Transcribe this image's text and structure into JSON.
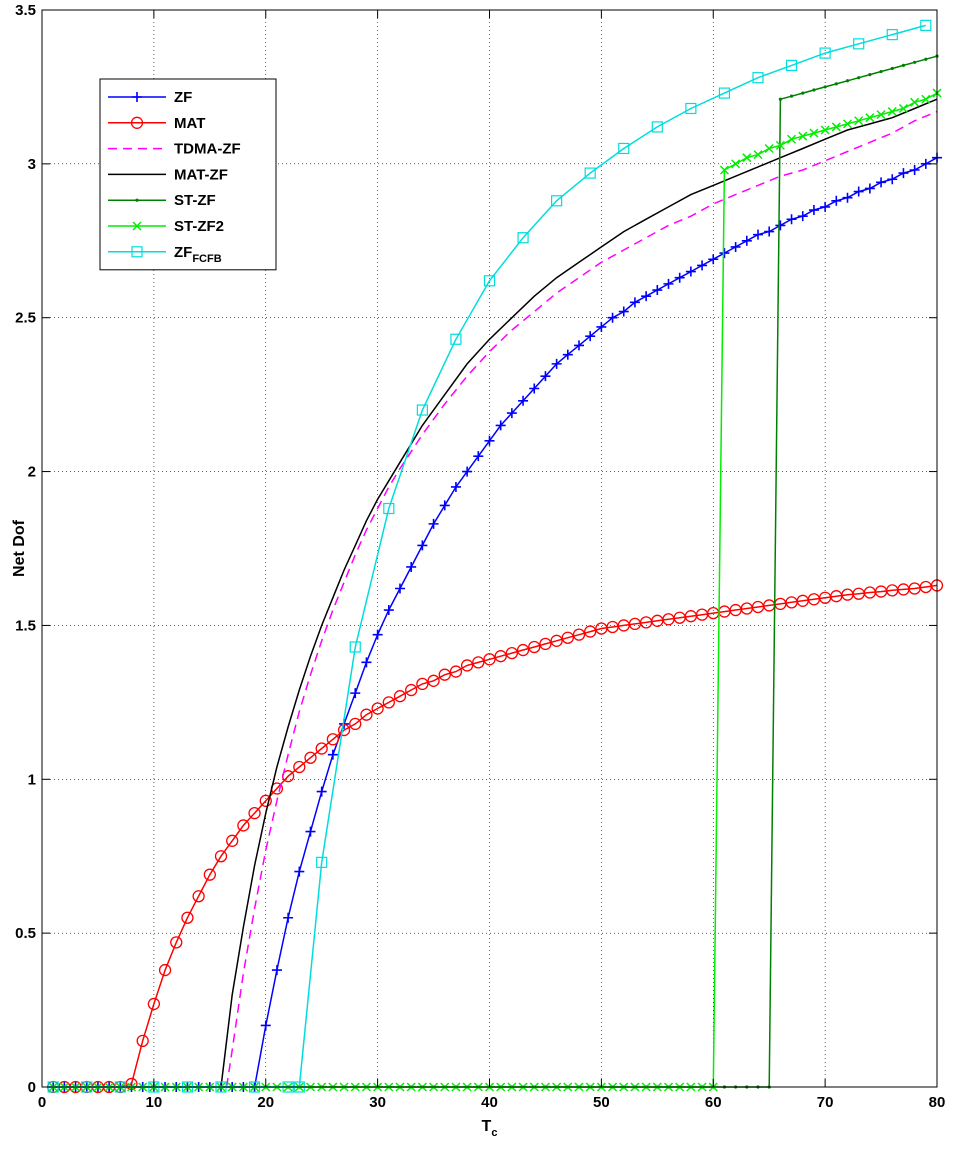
{
  "chart_data": {
    "type": "line",
    "xlabel": "T",
    "xlabel_sub": "c",
    "ylabel": "Net Dof",
    "xlim": [
      0,
      80
    ],
    "ylim": [
      0,
      3.5
    ],
    "xticks": [
      0,
      10,
      20,
      30,
      40,
      50,
      60,
      70,
      80
    ],
    "yticks": [
      0,
      0.5,
      1,
      1.5,
      2,
      2.5,
      3,
      3.5
    ],
    "xtick_labels": [
      "0",
      "10",
      "20",
      "30",
      "40",
      "50",
      "60",
      "70",
      "80"
    ],
    "ytick_labels": [
      "0",
      "0.5",
      "1",
      "1.5",
      "2",
      "2.5",
      "3",
      "3.5"
    ],
    "grid": true,
    "legend_position": "top-left",
    "series": [
      {
        "name": "ZF",
        "color": "#0000ff",
        "marker": "plus",
        "dash": "solid",
        "x": [
          1,
          2,
          3,
          4,
          5,
          6,
          7,
          8,
          9,
          10,
          11,
          12,
          13,
          14,
          15,
          16,
          17,
          18,
          19,
          20,
          21,
          22,
          23,
          24,
          25,
          26,
          27,
          28,
          29,
          30,
          31,
          32,
          33,
          34,
          35,
          36,
          37,
          38,
          39,
          40,
          41,
          42,
          43,
          44,
          45,
          46,
          47,
          48,
          49,
          50,
          51,
          52,
          53,
          54,
          55,
          56,
          57,
          58,
          59,
          60,
          61,
          62,
          63,
          64,
          65,
          66,
          67,
          68,
          69,
          70,
          71,
          72,
          73,
          74,
          75,
          76,
          77,
          78,
          79,
          80
        ],
        "y": [
          0,
          0,
          0,
          0,
          0,
          0,
          0,
          0,
          0,
          0,
          0,
          0,
          0,
          0,
          0,
          0,
          0,
          0,
          0,
          0.2,
          0.38,
          0.55,
          0.7,
          0.83,
          0.96,
          1.08,
          1.18,
          1.28,
          1.38,
          1.47,
          1.55,
          1.62,
          1.69,
          1.76,
          1.83,
          1.89,
          1.95,
          2.0,
          2.05,
          2.1,
          2.15,
          2.19,
          2.23,
          2.27,
          2.31,
          2.35,
          2.38,
          2.41,
          2.44,
          2.47,
          2.5,
          2.52,
          2.55,
          2.57,
          2.59,
          2.61,
          2.63,
          2.65,
          2.67,
          2.69,
          2.71,
          2.73,
          2.75,
          2.77,
          2.78,
          2.8,
          2.82,
          2.83,
          2.85,
          2.86,
          2.88,
          2.89,
          2.91,
          2.92,
          2.94,
          2.95,
          2.97,
          2.98,
          3.0,
          3.02
        ]
      },
      {
        "name": "MAT",
        "color": "#ff0000",
        "marker": "circle",
        "dash": "solid",
        "x": [
          1,
          2,
          3,
          4,
          5,
          6,
          7,
          8,
          9,
          10,
          11,
          12,
          13,
          14,
          15,
          16,
          17,
          18,
          19,
          20,
          21,
          22,
          23,
          24,
          25,
          26,
          27,
          28,
          29,
          30,
          31,
          32,
          33,
          34,
          35,
          36,
          37,
          38,
          39,
          40,
          41,
          42,
          43,
          44,
          45,
          46,
          47,
          48,
          49,
          50,
          51,
          52,
          53,
          54,
          55,
          56,
          57,
          58,
          59,
          60,
          61,
          62,
          63,
          64,
          65,
          66,
          67,
          68,
          69,
          70,
          71,
          72,
          73,
          74,
          75,
          76,
          77,
          78,
          79,
          80
        ],
        "y": [
          0,
          0,
          0,
          0,
          0,
          0,
          0,
          0.01,
          0.15,
          0.27,
          0.38,
          0.47,
          0.55,
          0.62,
          0.69,
          0.75,
          0.8,
          0.85,
          0.89,
          0.93,
          0.97,
          1.01,
          1.04,
          1.07,
          1.1,
          1.13,
          1.16,
          1.18,
          1.21,
          1.23,
          1.25,
          1.27,
          1.29,
          1.31,
          1.32,
          1.34,
          1.35,
          1.37,
          1.38,
          1.39,
          1.4,
          1.41,
          1.42,
          1.43,
          1.44,
          1.45,
          1.46,
          1.47,
          1.48,
          1.49,
          1.495,
          1.5,
          1.505,
          1.51,
          1.515,
          1.52,
          1.525,
          1.53,
          1.535,
          1.54,
          1.545,
          1.55,
          1.555,
          1.56,
          1.565,
          1.57,
          1.575,
          1.58,
          1.585,
          1.59,
          1.595,
          1.6,
          1.603,
          1.607,
          1.61,
          1.614,
          1.617,
          1.62,
          1.625,
          1.63
        ]
      },
      {
        "name": "TDMA-ZF",
        "color": "#ff00ff",
        "marker": "none",
        "dash": "dashed",
        "x": [
          16.5,
          17,
          18,
          19,
          20,
          21,
          22,
          23,
          24,
          25,
          26,
          27,
          28,
          29,
          30,
          31,
          32,
          34,
          36,
          38,
          40,
          42,
          44,
          46,
          48,
          50,
          52,
          54,
          56,
          58,
          60,
          62,
          64,
          66,
          68,
          70,
          72,
          74,
          76,
          78,
          80
        ],
        "y": [
          0,
          0.12,
          0.37,
          0.58,
          0.77,
          0.93,
          1.08,
          1.22,
          1.34,
          1.45,
          1.55,
          1.64,
          1.73,
          1.81,
          1.88,
          1.95,
          2.01,
          2.12,
          2.22,
          2.31,
          2.39,
          2.46,
          2.52,
          2.58,
          2.63,
          2.68,
          2.72,
          2.76,
          2.8,
          2.83,
          2.87,
          2.9,
          2.93,
          2.96,
          2.98,
          3.01,
          3.04,
          3.07,
          3.1,
          3.14,
          3.17
        ]
      },
      {
        "name": "MAT-ZF",
        "color": "#000000",
        "marker": "none",
        "dash": "solid",
        "x": [
          16,
          17,
          18,
          19,
          20,
          21,
          22,
          23,
          24,
          25,
          26,
          27,
          28,
          29,
          30,
          31,
          32,
          34,
          36,
          38,
          40,
          42,
          44,
          46,
          48,
          50,
          52,
          54,
          56,
          58,
          60,
          62,
          64,
          66,
          68,
          70,
          72,
          74,
          76,
          78,
          80
        ],
        "y": [
          0,
          0.3,
          0.52,
          0.72,
          0.89,
          1.04,
          1.17,
          1.29,
          1.4,
          1.5,
          1.59,
          1.68,
          1.76,
          1.84,
          1.91,
          1.97,
          2.03,
          2.15,
          2.25,
          2.35,
          2.43,
          2.5,
          2.57,
          2.63,
          2.68,
          2.73,
          2.78,
          2.82,
          2.86,
          2.9,
          2.93,
          2.96,
          2.99,
          3.02,
          3.05,
          3.08,
          3.11,
          3.13,
          3.15,
          3.18,
          3.21
        ]
      },
      {
        "name": "ST-ZF",
        "color": "#008000",
        "marker": "dot",
        "dash": "solid",
        "x": [
          1,
          2,
          3,
          4,
          5,
          6,
          7,
          8,
          9,
          10,
          11,
          12,
          13,
          14,
          15,
          16,
          17,
          18,
          19,
          20,
          21,
          22,
          23,
          24,
          25,
          26,
          27,
          28,
          29,
          30,
          31,
          32,
          33,
          34,
          35,
          36,
          37,
          38,
          39,
          40,
          41,
          42,
          43,
          44,
          45,
          46,
          47,
          48,
          49,
          50,
          51,
          52,
          53,
          54,
          55,
          56,
          57,
          58,
          59,
          60,
          61,
          62,
          63,
          64,
          65,
          66,
          67,
          68,
          69,
          70,
          71,
          72,
          73,
          74,
          75,
          76,
          77,
          78,
          79,
          80
        ],
        "y": [
          0,
          0,
          0,
          0,
          0,
          0,
          0,
          0,
          0,
          0,
          0,
          0,
          0,
          0,
          0,
          0,
          0,
          0,
          0,
          0,
          0,
          0,
          0,
          0,
          0,
          0,
          0,
          0,
          0,
          0,
          0,
          0,
          0,
          0,
          0,
          0,
          0,
          0,
          0,
          0,
          0,
          0,
          0,
          0,
          0,
          0,
          0,
          0,
          0,
          0,
          0,
          0,
          0,
          0,
          0,
          0,
          0,
          0,
          0,
          0,
          0,
          0,
          0,
          0,
          0,
          3.21,
          3.22,
          3.23,
          3.24,
          3.25,
          3.26,
          3.27,
          3.28,
          3.29,
          3.3,
          3.31,
          3.32,
          3.33,
          3.34,
          3.35
        ]
      },
      {
        "name": "ST-ZF2",
        "color": "#00ee00",
        "marker": "cross",
        "dash": "solid",
        "x": [
          1,
          2,
          3,
          4,
          5,
          6,
          7,
          8,
          9,
          10,
          11,
          12,
          13,
          14,
          15,
          16,
          17,
          18,
          19,
          20,
          21,
          22,
          23,
          24,
          25,
          26,
          27,
          28,
          29,
          30,
          31,
          32,
          33,
          34,
          35,
          36,
          37,
          38,
          39,
          40,
          41,
          42,
          43,
          44,
          45,
          46,
          47,
          48,
          49,
          50,
          51,
          52,
          53,
          54,
          55,
          56,
          57,
          58,
          59,
          60,
          61,
          62,
          63,
          64,
          65,
          66,
          67,
          68,
          69,
          70,
          71,
          72,
          73,
          74,
          75,
          76,
          77,
          78,
          79,
          80
        ],
        "y": [
          0,
          0,
          0,
          0,
          0,
          0,
          0,
          0,
          0,
          0,
          0,
          0,
          0,
          0,
          0,
          0,
          0,
          0,
          0,
          0,
          0,
          0,
          0,
          0,
          0,
          0,
          0,
          0,
          0,
          0,
          0,
          0,
          0,
          0,
          0,
          0,
          0,
          0,
          0,
          0,
          0,
          0,
          0,
          0,
          0,
          0,
          0,
          0,
          0,
          0,
          0,
          0,
          0,
          0,
          0,
          0,
          0,
          0,
          0,
          0,
          2.98,
          3.0,
          3.02,
          3.03,
          3.05,
          3.06,
          3.08,
          3.09,
          3.1,
          3.11,
          3.12,
          3.13,
          3.14,
          3.15,
          3.16,
          3.17,
          3.18,
          3.2,
          3.21,
          3.23
        ]
      },
      {
        "name": "ZF",
        "name_sub": "FCFB",
        "color": "#00dddd",
        "marker": "square",
        "dash": "solid",
        "x": [
          1,
          4,
          7,
          10,
          13,
          16,
          19,
          22,
          23,
          25,
          28,
          31,
          34,
          37,
          40,
          43,
          46,
          49,
          52,
          55,
          58,
          61,
          64,
          67,
          70,
          73,
          76,
          79
        ],
        "y": [
          0,
          0,
          0,
          0,
          0,
          0,
          0,
          0,
          0,
          0.73,
          1.43,
          1.88,
          2.2,
          2.43,
          2.62,
          2.76,
          2.88,
          2.97,
          3.05,
          3.12,
          3.18,
          3.23,
          3.28,
          3.32,
          3.36,
          3.39,
          3.42,
          3.45
        ]
      }
    ]
  }
}
